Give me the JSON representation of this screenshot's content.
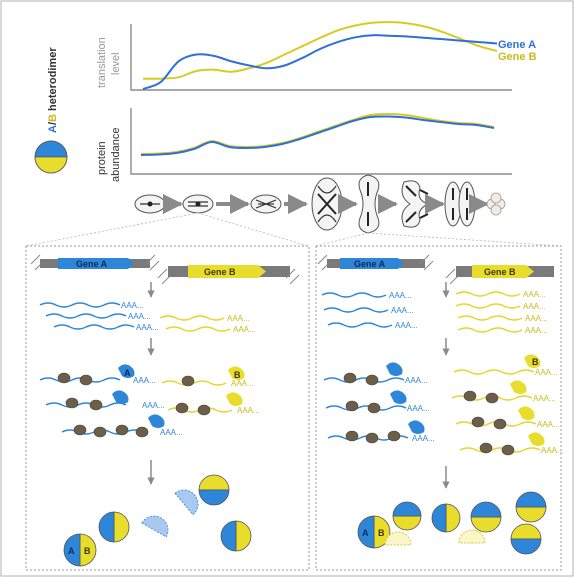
{
  "legend": {
    "dimer_label_a": "A",
    "dimer_label_sep": "/",
    "dimer_label_b": "B",
    "dimer_label_rest": " heterodimer"
  },
  "charts": {
    "translation": {
      "ylabel_line1": "translation",
      "ylabel_line2": "level",
      "series": [
        {
          "name": "Gene A",
          "color": "#2e6fd9"
        },
        {
          "name": "Gene B",
          "color": "#c9bb1a"
        }
      ]
    },
    "abundance": {
      "ylabel_line1": "protein",
      "ylabel_line2": "abundance"
    }
  },
  "chart_data": [
    {
      "type": "line",
      "ylabel": "translation level",
      "x": [
        0,
        5,
        10,
        15,
        20,
        25,
        30,
        35,
        40,
        45,
        50,
        55,
        60,
        65,
        70,
        75,
        80,
        85,
        90,
        95,
        100
      ],
      "series": [
        {
          "name": "Gene A",
          "values": [
            0,
            10,
            40,
            50,
            48,
            40,
            34,
            30,
            34,
            45,
            58,
            68,
            75,
            78,
            77,
            76,
            74,
            72,
            70,
            68,
            66
          ]
        },
        {
          "name": "Gene B",
          "values": [
            15,
            15,
            17,
            26,
            28,
            25,
            30,
            38,
            50,
            62,
            74,
            85,
            92,
            96,
            97,
            95,
            90,
            82,
            72,
            62,
            55
          ]
        }
      ]
    },
    {
      "type": "line",
      "ylabel": "protein abundance",
      "x": [
        0,
        5,
        10,
        15,
        20,
        25,
        30,
        35,
        40,
        45,
        50,
        55,
        60,
        65,
        70,
        75,
        80,
        85,
        90,
        95,
        100
      ],
      "series": [
        {
          "name": "Gene A",
          "values": [
            10,
            11,
            14,
            22,
            36,
            26,
            24,
            26,
            32,
            42,
            54,
            66,
            78,
            86,
            87,
            85,
            80,
            76,
            72,
            70,
            64
          ]
        },
        {
          "name": "Gene B",
          "values": [
            12,
            13,
            16,
            24,
            38,
            28,
            26,
            28,
            34,
            44,
            56,
            68,
            80,
            90,
            92,
            90,
            84,
            78,
            74,
            72,
            66
          ]
        }
      ]
    }
  ],
  "panels": {
    "left": {
      "gene_a": "Gene A",
      "gene_b": "Gene B",
      "mrna_tail": "AAA...",
      "dimer_a": "A",
      "dimer_b": "B",
      "ribo_label_a": "A",
      "ribo_label_b": "B"
    },
    "right": {
      "gene_a": "Gene A",
      "gene_b": "Gene B",
      "mrna_tail": "AAA...",
      "dimer_a": "A",
      "dimer_b": "B",
      "ribo_label_b": "B"
    }
  },
  "colors": {
    "blue": "#2e86d9",
    "yellow": "#e8dc2c",
    "line_a": "#2e6fd9",
    "line_b": "#c9bb1a",
    "ribosome": "#6b5e4a",
    "gene_box_gray": "#7a7a7a"
  }
}
